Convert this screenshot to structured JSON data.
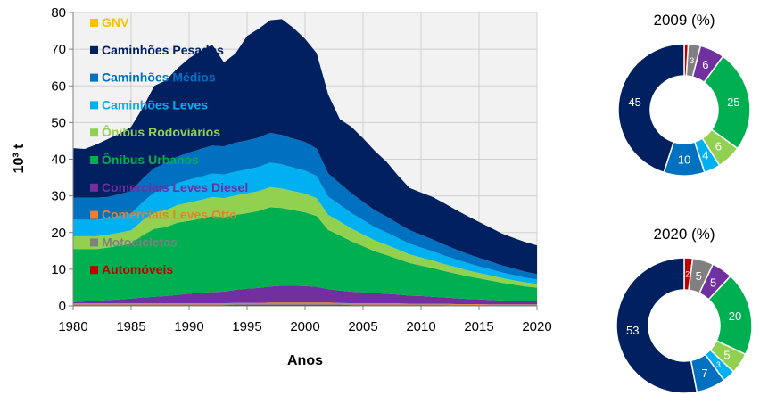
{
  "chart_data": [
    {
      "type": "area",
      "stacked": true,
      "xlabel": "Anos",
      "ylabel": "10³ t",
      "ylim": [
        0,
        80
      ],
      "xlim": [
        1980,
        2020
      ],
      "yticks": [
        0,
        10,
        20,
        30,
        40,
        50,
        60,
        70,
        80
      ],
      "xticks": [
        1980,
        1985,
        1990,
        1995,
        2000,
        2005,
        2010,
        2015,
        2020
      ],
      "grid": true,
      "years": [
        1980,
        1981,
        1982,
        1983,
        1984,
        1985,
        1986,
        1987,
        1988,
        1989,
        1990,
        1991,
        1992,
        1993,
        1994,
        1995,
        1996,
        1997,
        1998,
        1999,
        2000,
        2001,
        2002,
        2003,
        2004,
        2005,
        2006,
        2007,
        2008,
        2009,
        2010,
        2011,
        2012,
        2013,
        2014,
        2015,
        2016,
        2017,
        2018,
        2019,
        2020
      ],
      "series": [
        {
          "name": "Automóveis",
          "color": "#c00000",
          "values": [
            0.2,
            0.2,
            0.2,
            0.2,
            0.2,
            0.2,
            0.2,
            0.2,
            0.2,
            0.2,
            0.2,
            0.2,
            0.2,
            0.2,
            0.3,
            0.3,
            0.3,
            0.3,
            0.3,
            0.3,
            0.3,
            0.3,
            0.3,
            0.3,
            0.2,
            0.2,
            0.2,
            0.2,
            0.2,
            0.2,
            0.2,
            0.2,
            0.2,
            0.1,
            0.1,
            0.1,
            0.1,
            0.1,
            0.1,
            0.1,
            0.1
          ]
        },
        {
          "name": "Motocicletas",
          "color": "#808080",
          "values": [
            0.2,
            0.2,
            0.2,
            0.2,
            0.2,
            0.2,
            0.2,
            0.2,
            0.2,
            0.2,
            0.2,
            0.2,
            0.2,
            0.2,
            0.2,
            0.2,
            0.2,
            0.2,
            0.2,
            0.2,
            0.2,
            0.2,
            0.2,
            0.2,
            0.2,
            0.2,
            0.2,
            0.2,
            0.2,
            0.2,
            0.2,
            0.2,
            0.2,
            0.2,
            0.2,
            0.2,
            0.2,
            0.2,
            0.2,
            0.2,
            0.2
          ]
        },
        {
          "name": "Comerciais Leves Otto",
          "color": "#ed7d31",
          "values": [
            0.3,
            0.3,
            0.3,
            0.3,
            0.3,
            0.3,
            0.3,
            0.3,
            0.3,
            0.3,
            0.3,
            0.3,
            0.3,
            0.3,
            0.3,
            0.3,
            0.3,
            0.4,
            0.4,
            0.4,
            0.4,
            0.4,
            0.4,
            0.3,
            0.3,
            0.3,
            0.3,
            0.3,
            0.3,
            0.2,
            0.2,
            0.2,
            0.2,
            0.2,
            0.2,
            0.2,
            0.1,
            0.1,
            0.1,
            0.1,
            0.1
          ]
        },
        {
          "name": "Comerciais Leves Diesel",
          "color": "#7030a0",
          "values": [
            0.3,
            0.5,
            0.7,
            0.9,
            1.1,
            1.3,
            1.6,
            1.8,
            2.0,
            2.3,
            2.6,
            2.9,
            3.1,
            3.2,
            3.6,
            3.9,
            4.1,
            4.4,
            4.6,
            4.6,
            4.5,
            4.3,
            3.7,
            3.4,
            3.2,
            3.0,
            2.8,
            2.6,
            2.4,
            2.2,
            2.1,
            1.9,
            1.7,
            1.6,
            1.4,
            1.3,
            1.2,
            1.1,
            1.0,
            0.9,
            0.9
          ]
        },
        {
          "name": "Ônibus Urbanos",
          "color": "#00b050",
          "values": [
            14.5,
            14.3,
            14.1,
            14.3,
            14.6,
            15.0,
            17.0,
            18.5,
            18.8,
            19.7,
            19.9,
            20.2,
            20.7,
            20.3,
            20.4,
            20.6,
            21.0,
            21.6,
            21.2,
            20.6,
            20.1,
            19.3,
            16.1,
            15.0,
            13.7,
            12.6,
            11.4,
            10.6,
            9.7,
            8.9,
            8.3,
            7.8,
            7.2,
            6.7,
            6.2,
            5.7,
            5.3,
            4.8,
            4.4,
            4.0,
            3.7
          ]
        },
        {
          "name": "Ônibus Rodoviários",
          "color": "#92d050",
          "values": [
            3.5,
            3.5,
            3.5,
            3.5,
            3.6,
            3.6,
            4.0,
            4.4,
            4.6,
            4.8,
            5.0,
            5.1,
            5.2,
            5.2,
            5.3,
            5.4,
            5.4,
            5.5,
            5.3,
            5.2,
            5.1,
            4.9,
            4.1,
            3.8,
            3.5,
            3.2,
            3.0,
            2.8,
            2.6,
            2.4,
            2.2,
            2.1,
            1.9,
            1.8,
            1.6,
            1.5,
            1.4,
            1.3,
            1.2,
            1.1,
            1.0
          ]
        },
        {
          "name": "Caminhões Leves",
          "color": "#00b0f0",
          "values": [
            4.5,
            4.5,
            4.5,
            4.5,
            4.6,
            4.6,
            5.0,
            5.5,
            5.8,
            6.0,
            6.2,
            6.3,
            6.4,
            6.4,
            6.5,
            6.5,
            6.6,
            6.7,
            6.6,
            6.4,
            6.3,
            6.0,
            5.0,
            4.6,
            4.2,
            3.9,
            3.6,
            3.4,
            3.1,
            2.9,
            2.7,
            2.5,
            2.3,
            2.1,
            2.0,
            1.8,
            1.7,
            1.5,
            1.4,
            1.3,
            1.2
          ]
        },
        {
          "name": "Caminhões Médios",
          "color": "#0070c0",
          "values": [
            6.0,
            6.0,
            6.0,
            5.8,
            5.9,
            6.1,
            6.4,
            6.7,
            7.0,
            7.2,
            7.4,
            7.6,
            7.6,
            7.7,
            7.9,
            7.9,
            8.0,
            8.1,
            8.0,
            7.9,
            7.8,
            7.5,
            6.3,
            5.8,
            5.4,
            5.0,
            4.6,
            4.3,
            4.0,
            3.7,
            3.5,
            3.2,
            3.0,
            2.7,
            2.5,
            2.3,
            2.1,
            1.9,
            1.8,
            1.6,
            1.5
          ]
        },
        {
          "name": "Caminhões Pesados",
          "color": "#002060",
          "values": [
            13.5,
            13.3,
            14.5,
            15.8,
            16.5,
            17.5,
            19.3,
            22.4,
            22.6,
            24.1,
            25.7,
            26.8,
            27.5,
            22.9,
            24.3,
            28.5,
            29.7,
            30.7,
            31.6,
            30.2,
            28.1,
            26.0,
            21.5,
            17.5,
            18.1,
            17.3,
            16.2,
            15.0,
            13.1,
            11.5,
            11.5,
            11.6,
            11.3,
            10.8,
            10.3,
            9.8,
            9.2,
            8.7,
            8.3,
            8.1,
            7.8
          ]
        },
        {
          "name": "GNV",
          "color": "#ffc000",
          "values": [
            0,
            0,
            0,
            0,
            0,
            0,
            0,
            0,
            0,
            0,
            0,
            0,
            0,
            0,
            0,
            0,
            0,
            0,
            0,
            0,
            0,
            0,
            0,
            0,
            0,
            0,
            0,
            0,
            0,
            0,
            0,
            0,
            0,
            0,
            0,
            0,
            0,
            0,
            0,
            0,
            0
          ]
        }
      ],
      "legend": [
        "GNV",
        "Caminhões Pesados",
        "Caminhões Médios",
        "Caminhões Leves",
        "Ônibus Rodoviários",
        "Ônibus Urbanos",
        "Comerciais Leves Diesel",
        "Comerciais Leves Otto",
        "Motocicletas",
        "Automóveis"
      ],
      "legend_placement": "top-left"
    },
    {
      "type": "pie",
      "variant": "donut",
      "title": "2009 (%)",
      "slices": [
        {
          "name": "Automóveis",
          "value": 1,
          "label": "",
          "color": "#c00000"
        },
        {
          "name": "Motocicletas",
          "value": 3,
          "label": "3",
          "color": "#808080"
        },
        {
          "name": "Comerciais Leves Diesel",
          "value": 6,
          "label": "6",
          "color": "#7030a0"
        },
        {
          "name": "Ônibus Urbanos",
          "value": 25,
          "label": "25",
          "color": "#00b050"
        },
        {
          "name": "Ônibus Rodoviários",
          "value": 6,
          "label": "6",
          "color": "#92d050"
        },
        {
          "name": "Caminhões Leves",
          "value": 4,
          "label": "4",
          "color": "#00b0f0"
        },
        {
          "name": "Caminhões Médios",
          "value": 10,
          "label": "10",
          "color": "#0070c0"
        },
        {
          "name": "Caminhões Pesados",
          "value": 45,
          "label": "45",
          "color": "#002060"
        }
      ]
    },
    {
      "type": "pie",
      "variant": "donut",
      "title": "2020 (%)",
      "slices": [
        {
          "name": "Automóveis",
          "value": 2,
          "label": "2",
          "color": "#c00000"
        },
        {
          "name": "Motocicletas",
          "value": 5,
          "label": "5",
          "color": "#808080"
        },
        {
          "name": "Comerciais Leves Diesel",
          "value": 5,
          "label": "5",
          "color": "#7030a0"
        },
        {
          "name": "Ônibus Urbanos",
          "value": 20,
          "label": "20",
          "color": "#00b050"
        },
        {
          "name": "Ônibus Rodoviários",
          "value": 5,
          "label": "5",
          "color": "#92d050"
        },
        {
          "name": "Caminhões Leves",
          "value": 3,
          "label": "3",
          "color": "#00b0f0"
        },
        {
          "name": "Caminhões Médios",
          "value": 7,
          "label": "7",
          "color": "#0070c0"
        },
        {
          "name": "Caminhões Pesados",
          "value": 53,
          "label": "53",
          "color": "#002060"
        }
      ]
    }
  ]
}
